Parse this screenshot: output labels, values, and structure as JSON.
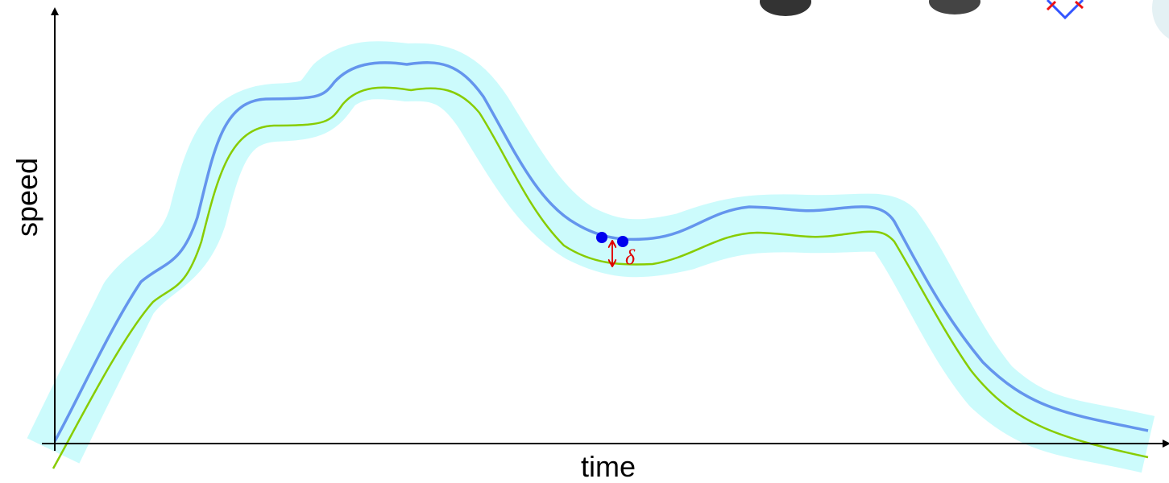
{
  "axes": {
    "y_label": "speed",
    "x_label": "time"
  },
  "annotation": {
    "delta": "δ"
  }
}
